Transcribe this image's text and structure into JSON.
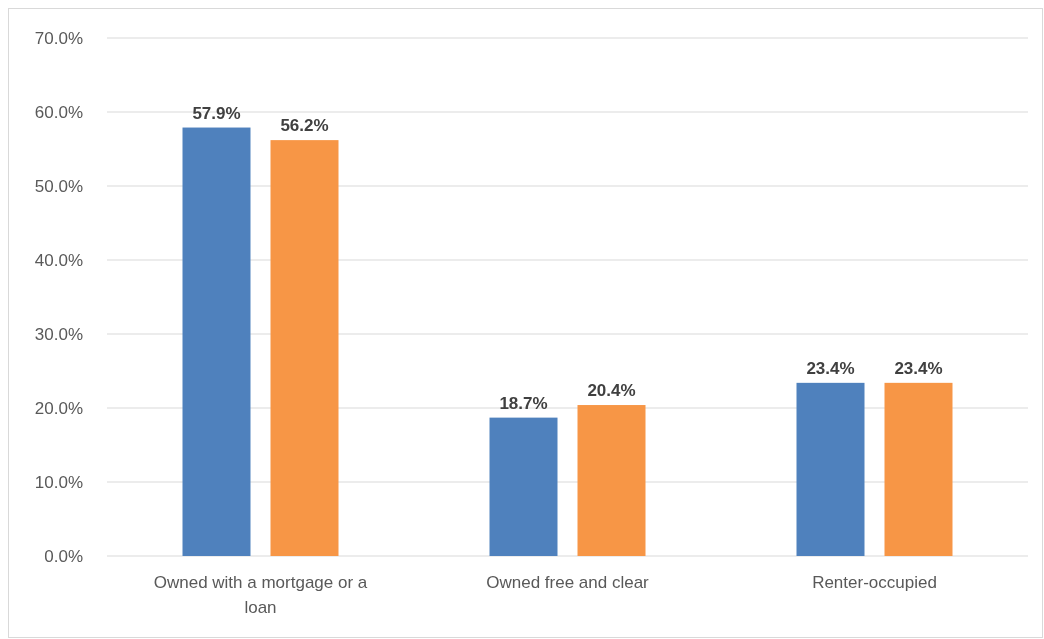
{
  "chart_data": {
    "type": "bar",
    "categories": [
      "Owned with a mortgage or a loan",
      "Owned free and clear",
      "Renter-occupied"
    ],
    "series": [
      {
        "color": "#4f81bd",
        "values": [
          57.9,
          18.7,
          23.4
        ]
      },
      {
        "color": "#f79646",
        "values": [
          56.2,
          20.4,
          23.4
        ]
      }
    ],
    "ylim": [
      0,
      70
    ],
    "yticks": [
      {
        "value": 0,
        "label": "0.0%"
      },
      {
        "value": 10,
        "label": "10.0%"
      },
      {
        "value": 20,
        "label": "20.0%"
      },
      {
        "value": 30,
        "label": "30.0%"
      },
      {
        "value": 40,
        "label": "40.0%"
      },
      {
        "value": 50,
        "label": "50.0%"
      },
      {
        "value": 60,
        "label": "60.0%"
      },
      {
        "value": 70,
        "label": "70.0%"
      }
    ],
    "value_labels": [
      [
        "57.9%",
        "18.7%",
        "23.4%"
      ],
      [
        "56.2%",
        "20.4%",
        "23.4%"
      ]
    ],
    "grid": "y"
  }
}
